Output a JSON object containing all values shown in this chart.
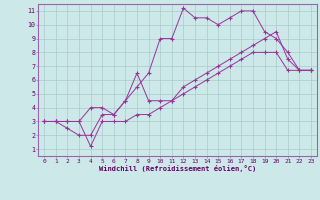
{
  "xlabel": "Windchill (Refroidissement éolien,°C)",
  "bg_color": "#cce8e8",
  "grid_color": "#aacccc",
  "line_color": "#993399",
  "spine_color": "#9966aa",
  "xlim": [
    -0.5,
    23.5
  ],
  "ylim": [
    0.5,
    11.5
  ],
  "xticks": [
    0,
    1,
    2,
    3,
    4,
    5,
    6,
    7,
    8,
    9,
    10,
    11,
    12,
    13,
    14,
    15,
    16,
    17,
    18,
    19,
    20,
    21,
    22,
    23
  ],
  "yticks": [
    1,
    2,
    3,
    4,
    5,
    6,
    7,
    8,
    9,
    10,
    11
  ],
  "series1_x": [
    0,
    1,
    2,
    3,
    4,
    5,
    6,
    7,
    8,
    9,
    10,
    11,
    12,
    13,
    14,
    15,
    16,
    17,
    18,
    19,
    20,
    21,
    22,
    23
  ],
  "series1_y": [
    3.0,
    3.0,
    2.5,
    2.0,
    2.0,
    3.5,
    3.5,
    4.5,
    5.5,
    6.5,
    9.0,
    9.0,
    11.2,
    10.5,
    10.5,
    10.0,
    10.5,
    11.0,
    11.0,
    9.5,
    9.0,
    8.0,
    6.7,
    6.7
  ],
  "series2_x": [
    0,
    1,
    2,
    3,
    4,
    5,
    6,
    7,
    8,
    9,
    10,
    11,
    12,
    13,
    14,
    15,
    16,
    17,
    18,
    19,
    20,
    21,
    22,
    23
  ],
  "series2_y": [
    3.0,
    3.0,
    3.0,
    3.0,
    4.0,
    4.0,
    3.5,
    4.5,
    6.5,
    4.5,
    4.5,
    4.5,
    5.5,
    6.0,
    6.5,
    7.0,
    7.5,
    8.0,
    8.5,
    9.0,
    9.5,
    7.5,
    6.7,
    6.7
  ],
  "series3_x": [
    0,
    1,
    2,
    3,
    4,
    5,
    6,
    7,
    8,
    9,
    10,
    11,
    12,
    13,
    14,
    15,
    16,
    17,
    18,
    19,
    20,
    21,
    22,
    23
  ],
  "series3_y": [
    3.0,
    3.0,
    3.0,
    3.0,
    1.2,
    3.0,
    3.0,
    3.0,
    3.5,
    3.5,
    4.0,
    4.5,
    5.0,
    5.5,
    6.0,
    6.5,
    7.0,
    7.5,
    8.0,
    8.0,
    8.0,
    6.7,
    6.7,
    6.7
  ],
  "tick_fontsize": 4.5,
  "xlabel_fontsize": 5.0
}
